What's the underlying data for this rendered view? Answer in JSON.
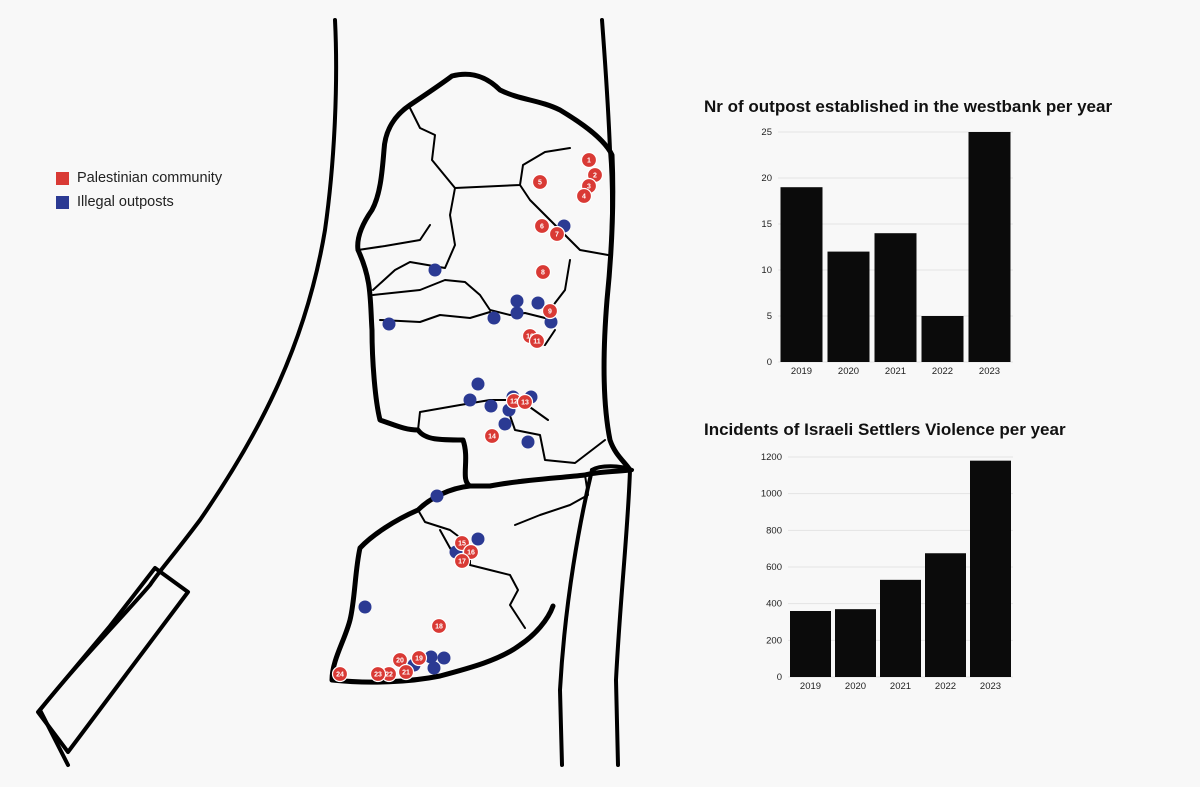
{
  "legend": {
    "items": [
      {
        "label": "Palestinian community",
        "color": "#d93a35"
      },
      {
        "label": "Illegal outposts",
        "color": "#2b3a93"
      }
    ]
  },
  "colors": {
    "community": "#d93a35",
    "outpost": "#2b3a93",
    "bar": "#0b0b0b",
    "grid": "#e4e4e4",
    "border": "#000000"
  },
  "communities": [
    "1",
    "2",
    "3",
    "4",
    "5",
    "6",
    "7",
    "8",
    "9",
    "10",
    "11",
    "12",
    "13",
    "14",
    "15",
    "16",
    "17",
    "18",
    "19",
    "20",
    "21",
    "22",
    "23",
    "24"
  ],
  "outposts_count": 28,
  "chart_data": [
    {
      "type": "bar",
      "title": "Nr of outpost established in the westbank per year",
      "categories": [
        "2019",
        "2020",
        "2021",
        "2022",
        "2023"
      ],
      "values": [
        19,
        12,
        14,
        5,
        25
      ],
      "ylim": [
        0,
        25
      ],
      "yticks": [
        "0",
        "5",
        "10",
        "15",
        "20",
        "25"
      ],
      "grid": true
    },
    {
      "type": "bar",
      "title": "Incidents of Israeli Settlers Violence per year",
      "categories": [
        "2019",
        "2020",
        "2021",
        "2022",
        "2023"
      ],
      "values": [
        360,
        370,
        530,
        675,
        1180
      ],
      "ylim": [
        0,
        1200
      ],
      "yticks": [
        "0",
        "200",
        "400",
        "600",
        "800",
        "1000",
        "1200"
      ],
      "grid": true
    }
  ]
}
